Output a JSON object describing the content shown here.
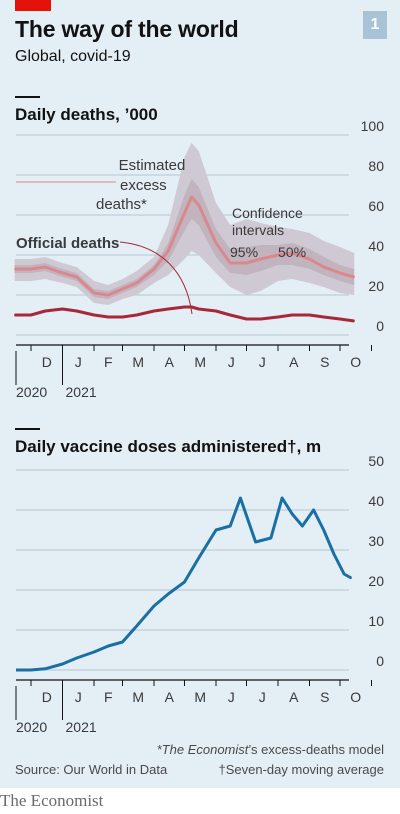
{
  "header": {
    "title": "The way of the world",
    "subtitle": "Global, covid-19",
    "badge": "1"
  },
  "footer": {
    "footnote_1_italic": "*The Economist",
    "footnote_1_rest": "’s excess-deaths model",
    "footnote_2": "†Seven-day moving average",
    "source": "Source: Our World in Data",
    "logo": "The Economist"
  },
  "colors": {
    "background": "#e3eef5",
    "brand_red": "#e3120b",
    "excess_line": "#d9888d",
    "official_line": "#a6283a",
    "ci95": "#cfc9d3",
    "ci50": "#c1b4bf",
    "vaccine_line": "#1a6fa3"
  },
  "chart_data": [
    {
      "type": "line",
      "title": "Daily deaths, ’000",
      "x_ticks": [
        "D",
        "J",
        "F",
        "M",
        "A",
        "M",
        "J",
        "J",
        "A",
        "S",
        "O"
      ],
      "year_labels": [
        "2020",
        "2021"
      ],
      "ylim": [
        0,
        100
      ],
      "y_ticks": [
        0,
        20,
        40,
        60,
        80,
        100
      ],
      "grid": true,
      "annotations": [
        "Estimated excess deaths*",
        "Official deaths",
        "Confidence intervals",
        "95%",
        "50%"
      ],
      "x": [
        "2020-11-15",
        "2020-12-01",
        "2020-12-15",
        "2021-01-01",
        "2021-01-15",
        "2021-02-01",
        "2021-02-15",
        "2021-03-01",
        "2021-03-15",
        "2021-04-01",
        "2021-04-15",
        "2021-05-01",
        "2021-05-08",
        "2021-05-15",
        "2021-06-01",
        "2021-06-15",
        "2021-07-01",
        "2021-07-15",
        "2021-08-01",
        "2021-08-15",
        "2021-09-01",
        "2021-09-15",
        "2021-10-01",
        "2021-10-15"
      ],
      "series": [
        {
          "name": "Estimated excess deaths*",
          "values": [
            33,
            33,
            34,
            31,
            29,
            21,
            20,
            23,
            26,
            33,
            42,
            61,
            69,
            65,
            46,
            36,
            36,
            38,
            40,
            41,
            38,
            34,
            31,
            29
          ],
          "ci95_low": [
            27,
            27,
            28,
            26,
            24,
            16,
            15,
            18,
            20,
            26,
            30,
            38,
            42,
            40,
            31,
            24,
            20,
            22,
            27,
            28,
            26,
            24,
            21,
            20
          ],
          "ci95_high": [
            38,
            38,
            39,
            36,
            34,
            27,
            25,
            28,
            32,
            39,
            55,
            89,
            96,
            92,
            66,
            55,
            58,
            56,
            54,
            53,
            51,
            47,
            44,
            41
          ],
          "ci50_low": [
            31,
            31,
            32,
            29,
            27,
            19,
            18,
            21,
            24,
            30,
            37,
            52,
            58,
            55,
            39,
            31,
            30,
            32,
            35,
            35,
            33,
            30,
            27,
            25
          ],
          "ci50_high": [
            35,
            35,
            36,
            33,
            31,
            23,
            22,
            25,
            28,
            35,
            46,
            70,
            78,
            74,
            53,
            43,
            44,
            45,
            45,
            46,
            43,
            39,
            35,
            33
          ]
        },
        {
          "name": "Official deaths",
          "values": [
            10,
            10,
            12,
            13,
            12,
            10,
            9,
            9,
            10,
            12,
            13,
            14,
            14,
            13,
            12,
            10,
            8,
            8,
            9,
            10,
            10,
            9,
            8,
            7
          ]
        }
      ]
    },
    {
      "type": "line",
      "title": "Daily vaccine doses administered†, m",
      "x_ticks": [
        "D",
        "J",
        "F",
        "M",
        "A",
        "M",
        "J",
        "J",
        "A",
        "S",
        "O"
      ],
      "year_labels": [
        "2020",
        "2021"
      ],
      "ylim": [
        0,
        50
      ],
      "y_ticks": [
        0,
        10,
        20,
        30,
        40,
        50
      ],
      "grid": true,
      "x": [
        "2020-12-01",
        "2020-12-15",
        "2021-01-01",
        "2021-01-15",
        "2021-02-01",
        "2021-02-15",
        "2021-03-01",
        "2021-03-15",
        "2021-04-01",
        "2021-04-15",
        "2021-05-01",
        "2021-05-15",
        "2021-06-01",
        "2021-06-15",
        "2021-06-25",
        "2021-07-10",
        "2021-07-25",
        "2021-08-05",
        "2021-08-15",
        "2021-08-25",
        "2021-09-05",
        "2021-09-15",
        "2021-09-25",
        "2021-10-05",
        "2021-10-12"
      ],
      "series": [
        {
          "name": "",
          "values": [
            0,
            0.3,
            1.5,
            3,
            4.5,
            6,
            7,
            11,
            16,
            19,
            22,
            28,
            35,
            36,
            43,
            32,
            33,
            43,
            39,
            36,
            40,
            35,
            29,
            24,
            23
          ]
        }
      ]
    }
  ]
}
